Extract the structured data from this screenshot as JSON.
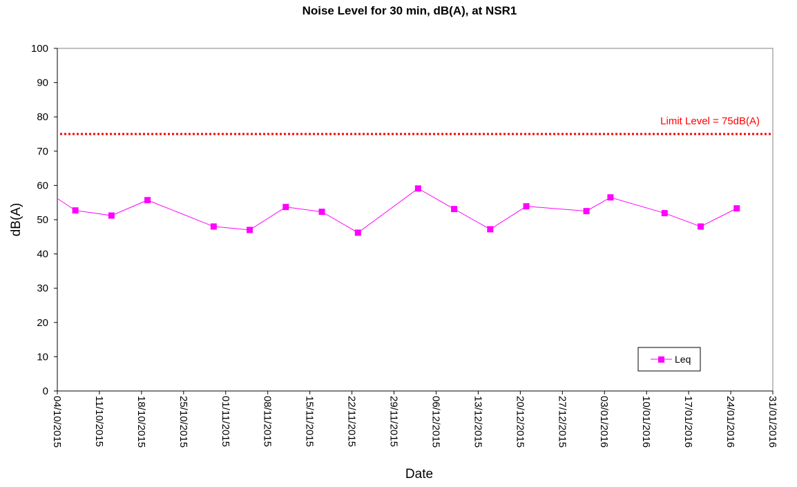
{
  "chart_data": {
    "type": "line",
    "title": "Noise Level for 30 min, dB(A), at NSR1",
    "xlabel": "Date",
    "ylabel": "dB(A)",
    "ylim": [
      0,
      100
    ],
    "yticks": [
      "0",
      "10",
      "20",
      "30",
      "40",
      "50",
      "60",
      "70",
      "80",
      "90",
      "100"
    ],
    "xlim": [
      "2015-10-04",
      "2016-01-31"
    ],
    "xticks": [
      "04/10/2015",
      "11/10/2015",
      "18/10/2015",
      "25/10/2015",
      "01/11/2015",
      "08/11/2015",
      "15/11/2015",
      "22/11/2015",
      "29/11/2015",
      "06/12/2015",
      "13/12/2015",
      "20/12/2015",
      "27/12/2015",
      "03/01/2016",
      "10/01/2016",
      "17/01/2016",
      "24/01/2016",
      "31/01/2016"
    ],
    "grid": false,
    "legend_position": "bottom-right",
    "limit": {
      "value": 75,
      "label": "Limit Level = 75dB(A)",
      "color": "#ff0000"
    },
    "series": [
      {
        "name": "Leq",
        "color": "#ff00ff",
        "x": [
          "2015-10-07",
          "2015-10-13",
          "2015-10-19",
          "2015-10-30",
          "2015-11-05",
          "2015-11-11",
          "2015-11-17",
          "2015-11-23",
          "2015-12-03",
          "2015-12-09",
          "2015-12-15",
          "2015-12-21",
          "2015-12-31",
          "2016-01-04",
          "2016-01-13",
          "2016-01-19",
          "2016-01-25"
        ],
        "y": [
          52.7,
          51.2,
          55.7,
          48.0,
          47.0,
          53.7,
          52.3,
          46.2,
          59.1,
          53.1,
          47.2,
          53.9,
          52.5,
          56.5,
          51.9,
          48.0,
          53.3
        ],
        "leading_segment_y": 56.2
      }
    ]
  }
}
